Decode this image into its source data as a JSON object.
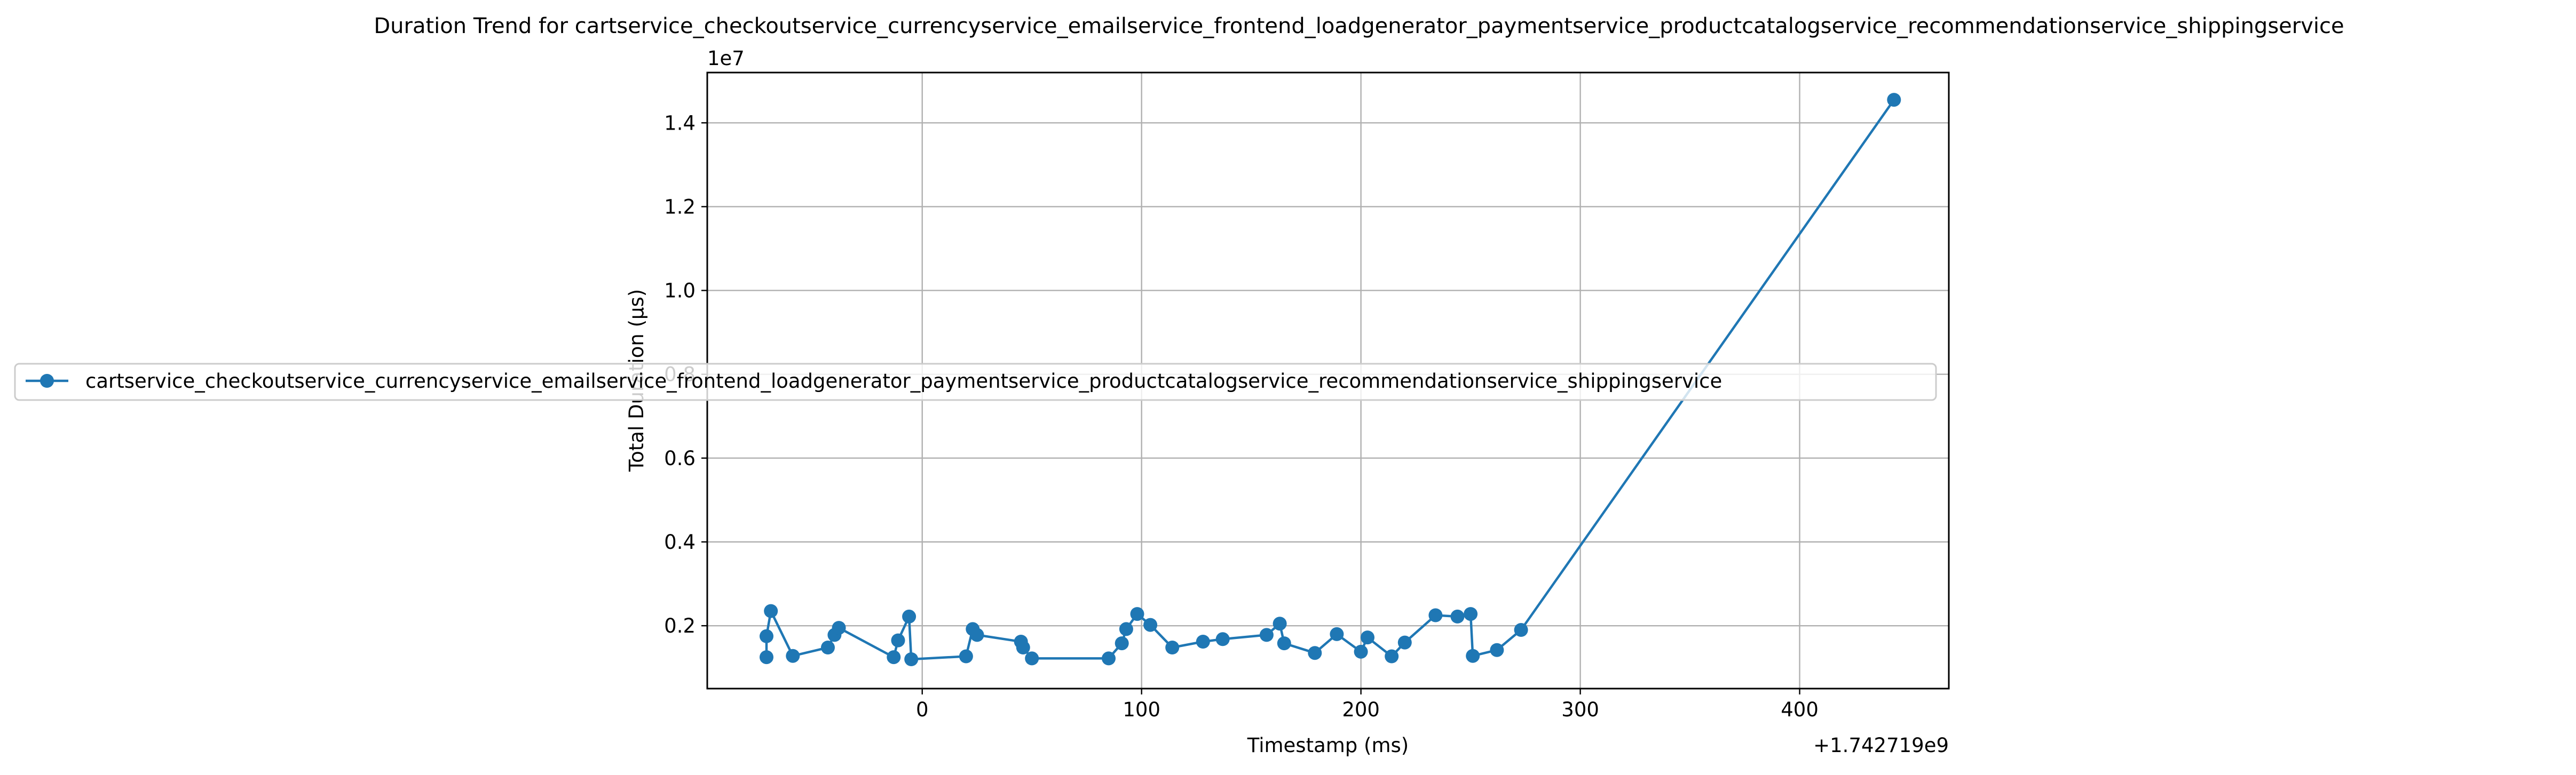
{
  "chart_data": {
    "type": "line",
    "title": "Duration Trend for cartservice_checkoutservice_currencyservice_emailservice_frontend_loadgenerator_paymentservice_productcatalogservice_recommendationservice_shippingservice",
    "xlabel": "Timestamp (ms)",
    "ylabel": "Total Duration (µs)",
    "x_offset_label": "+1.742719e9",
    "y_scale_label": "1e7",
    "xlim": [
      -98,
      468
    ],
    "ylim": [
      0.05,
      1.52
    ],
    "x_ticks": [
      0,
      100,
      200,
      300,
      400
    ],
    "x_tick_labels": [
      "0",
      "100",
      "200",
      "300",
      "400"
    ],
    "y_ticks": [
      0.2,
      0.4,
      0.6,
      0.8,
      1.0,
      1.2,
      1.4
    ],
    "y_tick_labels": [
      "0.2",
      "0.4",
      "0.6",
      "0.8",
      "1.0",
      "1.2",
      "1.4"
    ],
    "grid": true,
    "legend_position": "center-left",
    "series": [
      {
        "name": "cartservice_checkoutservice_currencyservice_emailservice_frontend_loadgenerator_paymentservice_productcatalogservice_recommendationservice_shippingservice",
        "color": "#1f77b4",
        "marker": "circle",
        "x": [
          -71,
          -71,
          -69,
          -59,
          -43,
          -40,
          -38,
          -13,
          -11,
          -6,
          -5,
          20,
          23,
          25,
          45,
          46,
          50,
          85,
          91,
          93,
          98,
          104,
          114,
          128,
          137,
          157,
          163,
          165,
          179,
          189,
          200,
          203,
          214,
          220,
          234,
          244,
          250,
          251,
          262,
          273,
          443
        ],
        "y": [
          0.125,
          0.175,
          0.235,
          0.128,
          0.148,
          0.178,
          0.195,
          0.125,
          0.165,
          0.222,
          0.12,
          0.127,
          0.192,
          0.178,
          0.162,
          0.148,
          0.122,
          0.122,
          0.158,
          0.192,
          0.228,
          0.202,
          0.148,
          0.162,
          0.168,
          0.178,
          0.205,
          0.158,
          0.135,
          0.18,
          0.138,
          0.172,
          0.127,
          0.16,
          0.225,
          0.222,
          0.228,
          0.128,
          0.142,
          0.19,
          1.455
        ]
      }
    ]
  }
}
